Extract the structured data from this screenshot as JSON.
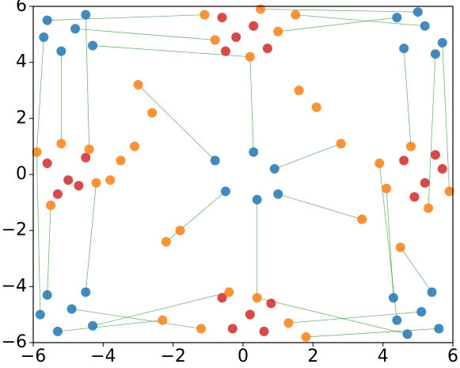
{
  "chart_data": {
    "type": "scatter",
    "xlim": [
      -6,
      6
    ],
    "ylim": [
      -6,
      6
    ],
    "xticks": [
      {
        "value": -6,
        "label": "−6"
      },
      {
        "value": -4,
        "label": "−4"
      },
      {
        "value": -2,
        "label": "−2"
      },
      0,
      2,
      4,
      6
    ],
    "yticks": [
      {
        "value": -6,
        "label": "−6"
      },
      {
        "value": -4,
        "label": "−4"
      },
      {
        "value": -2,
        "label": "−2"
      },
      0,
      2,
      4,
      6
    ],
    "segment_color": "#2ca02c",
    "segments": [
      [
        -5.6,
        5.5,
        -1.1,
        5.7
      ],
      [
        -4.8,
        5.2,
        -0.8,
        4.8
      ],
      [
        -4.3,
        4.6,
        0.2,
        4.2
      ],
      [
        -5.2,
        4.4,
        -5.2,
        1.1
      ],
      [
        -5.7,
        4.9,
        -5.9,
        0.8
      ],
      [
        -4.5,
        5.7,
        -4.4,
        0.9
      ],
      [
        4.4,
        5.6,
        1.0,
        5.1
      ],
      [
        5.2,
        5.3,
        1.5,
        5.7
      ],
      [
        5.7,
        4.7,
        5.9,
        -0.6
      ],
      [
        4.6,
        4.5,
        4.8,
        1.0
      ],
      [
        5.0,
        5.8,
        0.5,
        5.9
      ],
      [
        5.5,
        4.3,
        5.3,
        -1.2
      ],
      [
        -5.6,
        -4.3,
        -5.5,
        -1.1
      ],
      [
        -4.9,
        -4.8,
        -1.2,
        -5.5
      ],
      [
        -4.3,
        -5.4,
        -0.4,
        -4.2
      ],
      [
        -5.3,
        -5.6,
        -2.3,
        -5.2
      ],
      [
        -4.5,
        -4.2,
        -4.2,
        -0.3
      ],
      [
        -5.8,
        -5.0,
        -5.9,
        0.8
      ],
      [
        4.3,
        -4.4,
        4.1,
        -0.5
      ],
      [
        5.1,
        -4.9,
        1.3,
        -5.3
      ],
      [
        5.6,
        -5.5,
        1.8,
        -5.8
      ],
      [
        4.7,
        -5.7,
        0.4,
        -4.4
      ],
      [
        5.4,
        -4.2,
        4.5,
        -2.6
      ],
      [
        4.4,
        -5.2,
        3.9,
        0.4
      ],
      [
        -0.8,
        0.5,
        -3.0,
        3.2
      ],
      [
        0.3,
        0.8,
        0.2,
        4.2
      ],
      [
        0.9,
        0.2,
        2.8,
        1.1
      ],
      [
        -0.5,
        -0.6,
        -2.2,
        -2.4
      ],
      [
        0.4,
        -0.9,
        0.4,
        -4.4
      ],
      [
        1.0,
        -0.7,
        3.4,
        -1.6
      ]
    ],
    "series": [
      {
        "color": "#1f77b4",
        "x": [
          -0.8,
          0.3,
          0.9,
          -0.5,
          0.4,
          1.0,
          -5.6,
          -4.8,
          -4.3,
          -5.2,
          -5.7,
          -4.5,
          4.4,
          5.2,
          5.7,
          4.6,
          5.0,
          5.5,
          -5.6,
          -4.9,
          -4.3,
          -5.3,
          -4.5,
          -5.8,
          4.3,
          5.1,
          5.6,
          4.7,
          5.4,
          4.4
        ],
        "y": [
          0.5,
          0.8,
          0.2,
          -0.6,
          -0.9,
          -0.7,
          5.5,
          5.2,
          4.6,
          4.4,
          4.9,
          5.7,
          5.6,
          5.3,
          4.7,
          4.5,
          5.8,
          4.3,
          -4.3,
          -4.8,
          -5.4,
          -5.6,
          -4.2,
          -5.0,
          -4.4,
          -4.9,
          -5.5,
          -5.7,
          -4.2,
          -5.2
        ]
      },
      {
        "color": "#d62728",
        "x": [
          -0.6,
          -0.2,
          0.3,
          0.7,
          -0.5,
          -0.6,
          0.2,
          0.6,
          -0.3,
          0.8,
          -5.6,
          -5.0,
          -4.5,
          -5.3,
          -4.7,
          4.6,
          5.2,
          5.7,
          4.9,
          5.5
        ],
        "y": [
          5.6,
          4.9,
          5.3,
          4.5,
          4.4,
          -4.4,
          -5.0,
          -5.6,
          -5.5,
          -4.6,
          0.4,
          -0.2,
          0.6,
          -0.7,
          -0.4,
          0.5,
          -0.3,
          0.2,
          -0.8,
          0.7
        ]
      },
      {
        "color": "#ff7f0e",
        "x": [
          -1.1,
          -0.8,
          0.2,
          1.0,
          1.5,
          0.5,
          -1.2,
          -0.4,
          0.4,
          1.3,
          1.8,
          -2.3,
          -5.9,
          -5.2,
          -4.2,
          -5.5,
          -4.4,
          -3.8,
          4.1,
          4.8,
          5.9,
          3.9,
          5.3,
          4.5,
          -3.0,
          -2.6,
          -3.1,
          -2.2,
          -1.8,
          2.1,
          3.4,
          2.8,
          1.6,
          -3.5
        ],
        "y": [
          5.7,
          4.8,
          4.2,
          5.1,
          5.7,
          5.9,
          -5.5,
          -4.2,
          -4.4,
          -5.3,
          -5.8,
          -5.2,
          0.8,
          1.1,
          -0.3,
          -1.1,
          0.9,
          -0.2,
          -0.5,
          1.0,
          -0.6,
          0.4,
          -1.2,
          -2.6,
          3.2,
          2.2,
          1.0,
          -2.4,
          -2.0,
          2.4,
          -1.6,
          1.1,
          3.0,
          0.5
        ]
      }
    ]
  }
}
